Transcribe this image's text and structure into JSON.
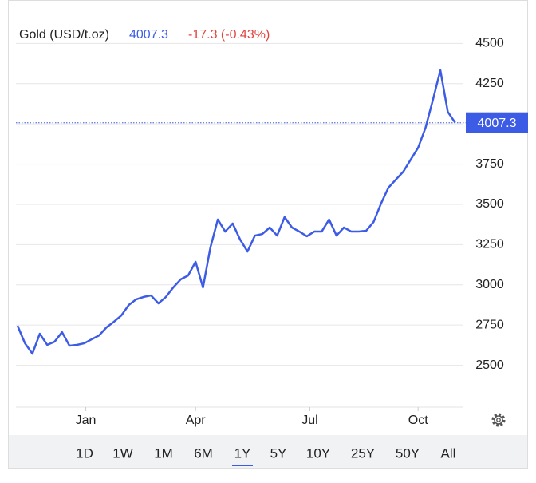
{
  "header": {
    "title": "Gold (USD/t.oz)",
    "price": "4007.3",
    "change": "-17.3 (-0.43%)"
  },
  "chart_data": {
    "type": "line",
    "color": "#3d5ce6",
    "grid": true,
    "values": [
      2746,
      2637,
      2572,
      2696,
      2627,
      2647,
      2706,
      2622,
      2627,
      2637,
      2662,
      2686,
      2736,
      2771,
      2810,
      2875,
      2910,
      2925,
      2934,
      2885,
      2925,
      2984,
      3034,
      3058,
      3143,
      2984,
      3232,
      3406,
      3331,
      3381,
      3282,
      3207,
      3306,
      3316,
      3356,
      3306,
      3421,
      3356,
      3331,
      3302,
      3331,
      3331,
      3406,
      3306,
      3356,
      3331,
      3331,
      3336,
      3391,
      3505,
      3604,
      3654,
      3703,
      3778,
      3852,
      3976,
      4150,
      4333,
      4075,
      4007.3
    ],
    "xlim": [
      0,
      60
    ],
    "xticks": [
      {
        "value": 9.2,
        "label": "Jan"
      },
      {
        "value": 24,
        "label": "Apr"
      },
      {
        "value": 39.4,
        "label": "Jul"
      },
      {
        "value": 54,
        "label": "Oct"
      }
    ],
    "ylim": [
      2240,
      4720
    ],
    "yticks": [
      2500,
      2750,
      3000,
      3250,
      3500,
      3750,
      4000,
      4250,
      4500
    ]
  },
  "ranges": [
    "1D",
    "1W",
    "1M",
    "6M",
    "1Y",
    "5Y",
    "10Y",
    "25Y",
    "50Y",
    "All"
  ],
  "selected_range": "1Y"
}
